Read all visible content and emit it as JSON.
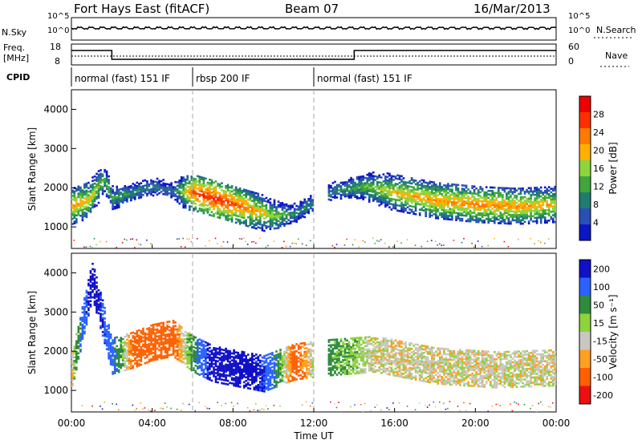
{
  "header": {
    "station": "Fort Hays East (fitACF)",
    "beam": "Beam 07",
    "date": "16/Mar/2013"
  },
  "noise_panel": {
    "left_label": "N.Sky",
    "right_label": "N.Search",
    "left_ticks": [
      "10^5",
      "10^0"
    ],
    "right_ticks": [
      "10^5",
      "10^0"
    ]
  },
  "freq_panel": {
    "left_label_line1": "Freq.",
    "left_label_line2": "[MHz]",
    "right_label": "Nave",
    "left_ticks": [
      "18",
      "8"
    ],
    "right_ticks": [
      "60",
      "0"
    ]
  },
  "cpid": {
    "label": "CPID",
    "segments": [
      {
        "name": "normal (fast) 151 IF",
        "start_h": 0,
        "end_h": 6
      },
      {
        "name": "rbsp 200 IF",
        "start_h": 6,
        "end_h": 12
      },
      {
        "name": "normal (fast) 151 IF",
        "start_h": 12,
        "end_h": 24
      }
    ]
  },
  "chart_data": [
    {
      "type": "heatmap",
      "title": "",
      "xlabel": "Time UT",
      "ylabel": "Slant Range [km]",
      "xlim_hours": [
        0,
        24
      ],
      "x_ticks": [
        "00:00",
        "04:00",
        "08:00",
        "12:00",
        "16:00",
        "20:00",
        "00:00"
      ],
      "ylim_km": [
        450,
        4500
      ],
      "y_ticks": [
        1000,
        2000,
        3000,
        4000
      ],
      "colorbar": {
        "label": "Power [dB]",
        "ticks": [
          "4",
          "8",
          "12",
          "16",
          "20",
          "24",
          "28"
        ],
        "colors": [
          "#0b16c4",
          "#2850b4",
          "#1e7d70",
          "#40a63c",
          "#8cd63c",
          "#ffb000",
          "#ff7a00",
          "#ff3000",
          "#ee0000"
        ]
      },
      "band_centers": [
        {
          "t": 0.0,
          "range_km": 1500,
          "value": 22
        },
        {
          "t": 0.8,
          "range_km": 1650,
          "value": 20
        },
        {
          "t": 1.6,
          "range_km": 2200,
          "value": 14
        },
        {
          "t": 2.0,
          "range_km": 1700,
          "value": 12
        },
        {
          "t": 3.0,
          "range_km": 1850,
          "value": 10
        },
        {
          "t": 4.0,
          "range_km": 2000,
          "value": 9
        },
        {
          "t": 5.0,
          "range_km": 1900,
          "value": 8
        },
        {
          "t": 6.0,
          "range_km": 1850,
          "value": 26
        },
        {
          "t": 7.0,
          "range_km": 1700,
          "value": 28
        },
        {
          "t": 8.0,
          "range_km": 1550,
          "value": 26
        },
        {
          "t": 9.0,
          "range_km": 1400,
          "value": 22
        },
        {
          "t": 10.0,
          "range_km": 1250,
          "value": 16
        },
        {
          "t": 11.0,
          "range_km": 1300,
          "value": 10
        },
        {
          "t": 13.0,
          "range_km": 1900,
          "value": 9
        },
        {
          "t": 14.5,
          "range_km": 2000,
          "value": 14
        },
        {
          "t": 16.0,
          "range_km": 1850,
          "value": 20
        },
        {
          "t": 18.0,
          "range_km": 1650,
          "value": 22
        },
        {
          "t": 20.0,
          "range_km": 1550,
          "value": 23
        },
        {
          "t": 22.0,
          "range_km": 1500,
          "value": 22
        },
        {
          "t": 24.0,
          "range_km": 1550,
          "value": 20
        }
      ]
    },
    {
      "type": "heatmap",
      "title": "",
      "xlabel": "Time UT",
      "ylabel": "Slant Range [km]",
      "xlim_hours": [
        0,
        24
      ],
      "x_ticks": [
        "00:00",
        "04:00",
        "08:00",
        "12:00",
        "16:00",
        "20:00",
        "00:00"
      ],
      "ylim_km": [
        450,
        4500
      ],
      "y_ticks": [
        1000,
        2000,
        3000,
        4000
      ],
      "colorbar": {
        "label": "Velocity [m s⁻¹]",
        "ticks": [
          "200",
          "100",
          "50",
          "15",
          "-15",
          "-50",
          "-100",
          "-200"
        ],
        "colors": [
          "#1010c8",
          "#2a62ff",
          "#2e8b3c",
          "#8ed23c",
          "#c8c8c0",
          "#ffa020",
          "#ff6000",
          "#ee1010"
        ]
      },
      "band_centers": [
        {
          "t": 0.0,
          "range_km": 1500,
          "value": 0
        },
        {
          "t": 1.0,
          "range_km": 3800,
          "value": 200
        },
        {
          "t": 2.0,
          "range_km": 1850,
          "value": 100
        },
        {
          "t": 3.0,
          "range_km": 2000,
          "value": -50
        },
        {
          "t": 4.0,
          "range_km": 2200,
          "value": -50
        },
        {
          "t": 5.0,
          "range_km": 2300,
          "value": -50
        },
        {
          "t": 6.0,
          "range_km": 1900,
          "value": 50
        },
        {
          "t": 7.0,
          "range_km": 1650,
          "value": 200
        },
        {
          "t": 8.0,
          "range_km": 1550,
          "value": 200
        },
        {
          "t": 9.5,
          "range_km": 1400,
          "value": 150
        },
        {
          "t": 11.0,
          "range_km": 1700,
          "value": -60
        },
        {
          "t": 12.5,
          "range_km": 1800,
          "value": 50
        },
        {
          "t": 15.0,
          "range_km": 1900,
          "value": 0
        },
        {
          "t": 18.0,
          "range_km": 1600,
          "value": 0
        },
        {
          "t": 21.0,
          "range_km": 1500,
          "value": 0
        },
        {
          "t": 24.0,
          "range_km": 1550,
          "value": 0
        }
      ]
    }
  ]
}
